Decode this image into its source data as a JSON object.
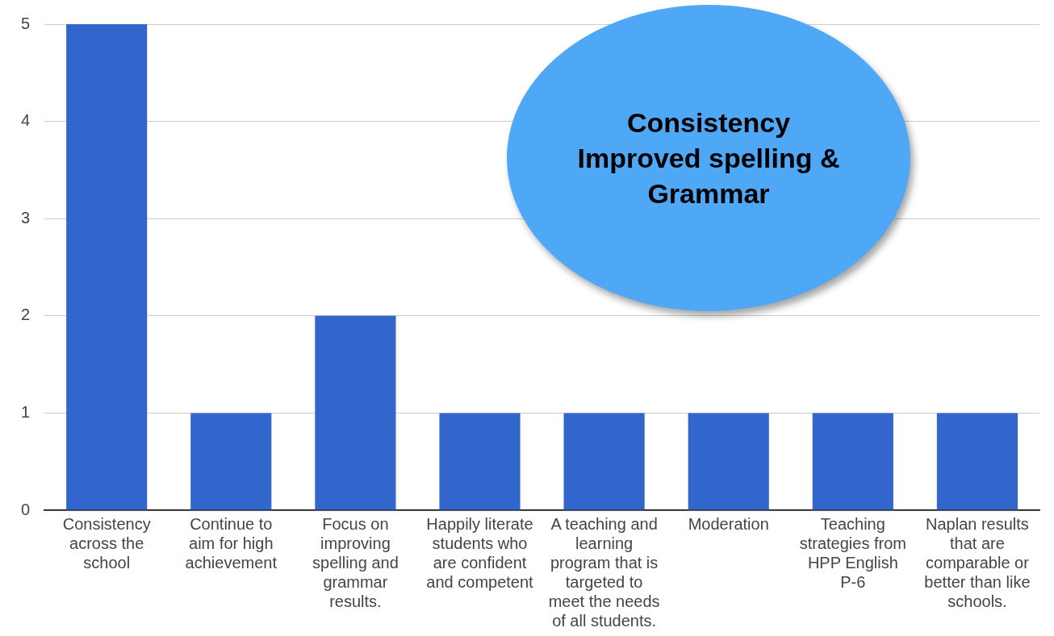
{
  "chart_data": {
    "type": "bar",
    "categories": [
      "Consistency across the school",
      "Continue to aim for high achievement",
      "Focus on improving spelling and grammar results.",
      "Happily literate students who are confident and competent",
      "A teaching and learning program that is targeted to meet the needs of all students.",
      "Moderation",
      "Teaching strategies from HPP English P-6",
      "Naplan results that are comparable or better than like schools."
    ],
    "values": [
      5,
      1,
      2,
      1,
      1,
      1,
      1,
      1
    ],
    "color": "#3366cc",
    "ylim": [
      0,
      5
    ],
    "yticks": [
      0,
      1,
      2,
      3,
      4,
      5
    ],
    "grid": "y",
    "legend": false,
    "annotations": [
      "Consistency\nImproved spelling &\nGrammar"
    ]
  }
}
